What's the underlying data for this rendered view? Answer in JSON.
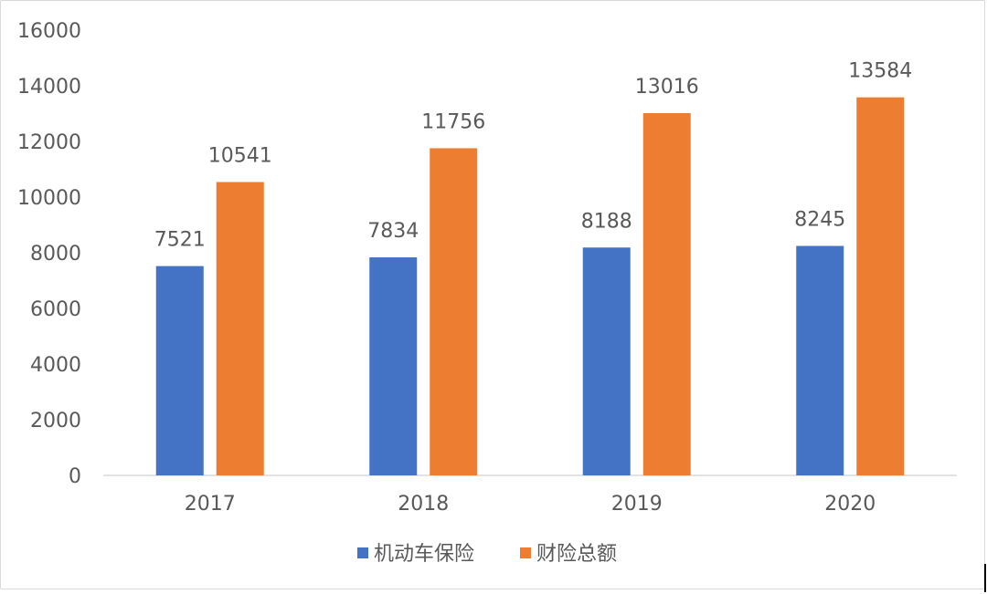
{
  "chart_data": {
    "type": "bar",
    "title": "",
    "xlabel": "",
    "ylabel": "",
    "categories": [
      "2017",
      "2018",
      "2019",
      "2020"
    ],
    "series": [
      {
        "name": "机动车保险",
        "color": "#4472c4",
        "values": [
          7521,
          7834,
          8188,
          8245
        ]
      },
      {
        "name": "财险总额",
        "color": "#ed7d31",
        "values": [
          10541,
          11756,
          13016,
          13584
        ]
      }
    ],
    "ylim": [
      0,
      16000
    ],
    "yticks": [
      "0",
      "2000",
      "4000",
      "6000",
      "8000",
      "10000",
      "12000",
      "14000",
      "16000"
    ],
    "grid": false,
    "legend_position": "bottom",
    "data_labels": true
  }
}
